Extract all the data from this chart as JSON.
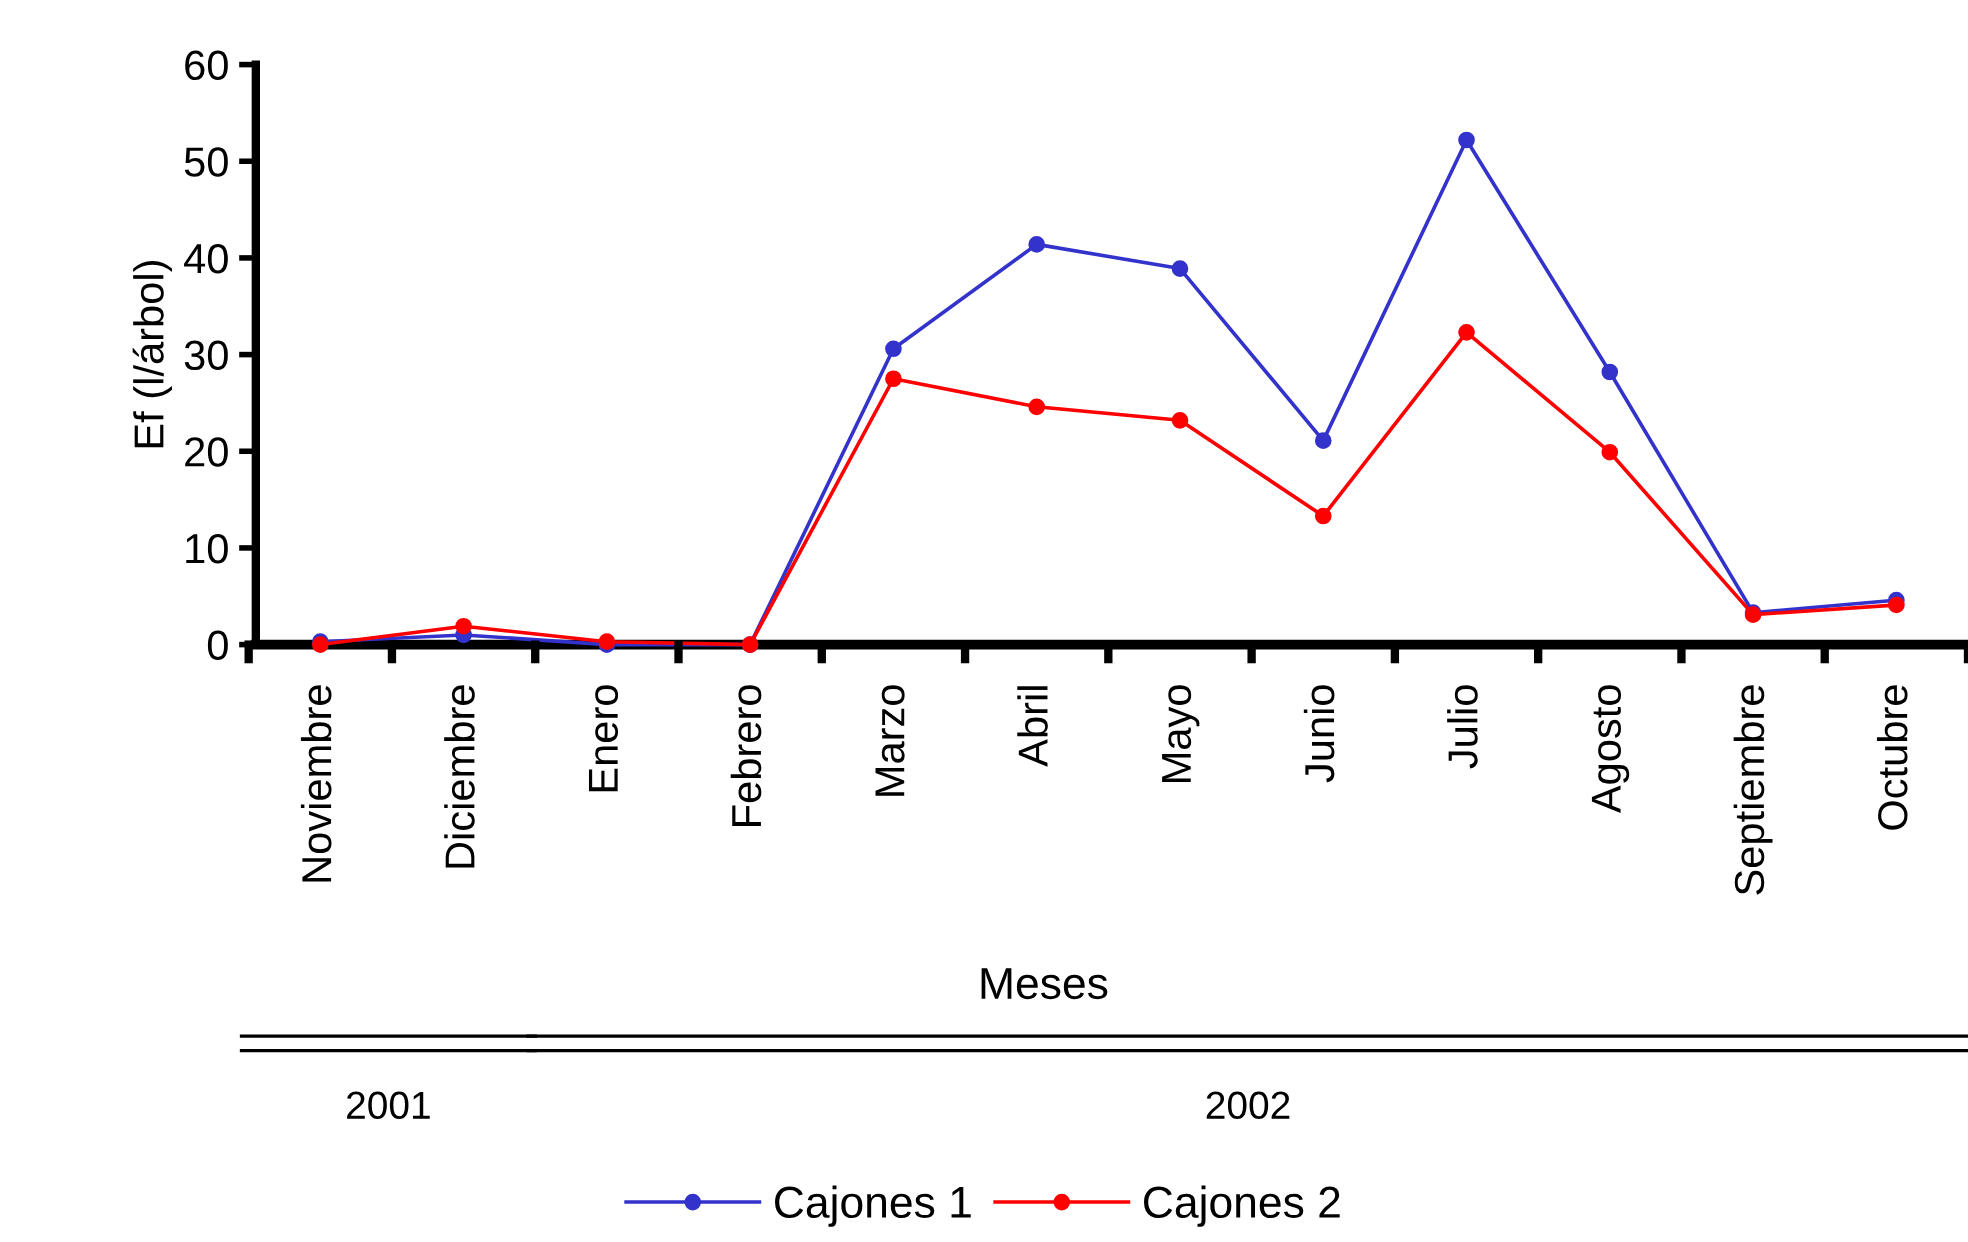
{
  "chart_data": {
    "type": "line",
    "ylabel": "Ef (l/árbol)",
    "xlabel": "Meses",
    "categories": [
      "Noviembre",
      "Diciembre",
      "Enero",
      "Febrero",
      "Marzo",
      "Abril",
      "Mayo",
      "Junio",
      "Julio",
      "Agosto",
      "Septiembre",
      "Octubre"
    ],
    "series": [
      {
        "name": "Cajones 1",
        "color": "#3333cc",
        "values": [
          0.3,
          1,
          0,
          0,
          30.6,
          41.4,
          38.9,
          21.1,
          52.2,
          28.2,
          3.3,
          4.6
        ]
      },
      {
        "name": "Cajones 2",
        "color": "#ff0000",
        "values": [
          0,
          1.9,
          0.3,
          0,
          27.5,
          24.6,
          23.2,
          13.3,
          32.3,
          19.9,
          3.1,
          4.1
        ]
      }
    ],
    "ylim": [
      0,
      60
    ],
    "yticks": [
      0,
      10,
      20,
      30,
      40,
      50,
      60
    ],
    "grid": false,
    "legend": "bottom",
    "marker": "circle",
    "line_style": "solid",
    "annotations": [
      "2001",
      "2002"
    ]
  }
}
